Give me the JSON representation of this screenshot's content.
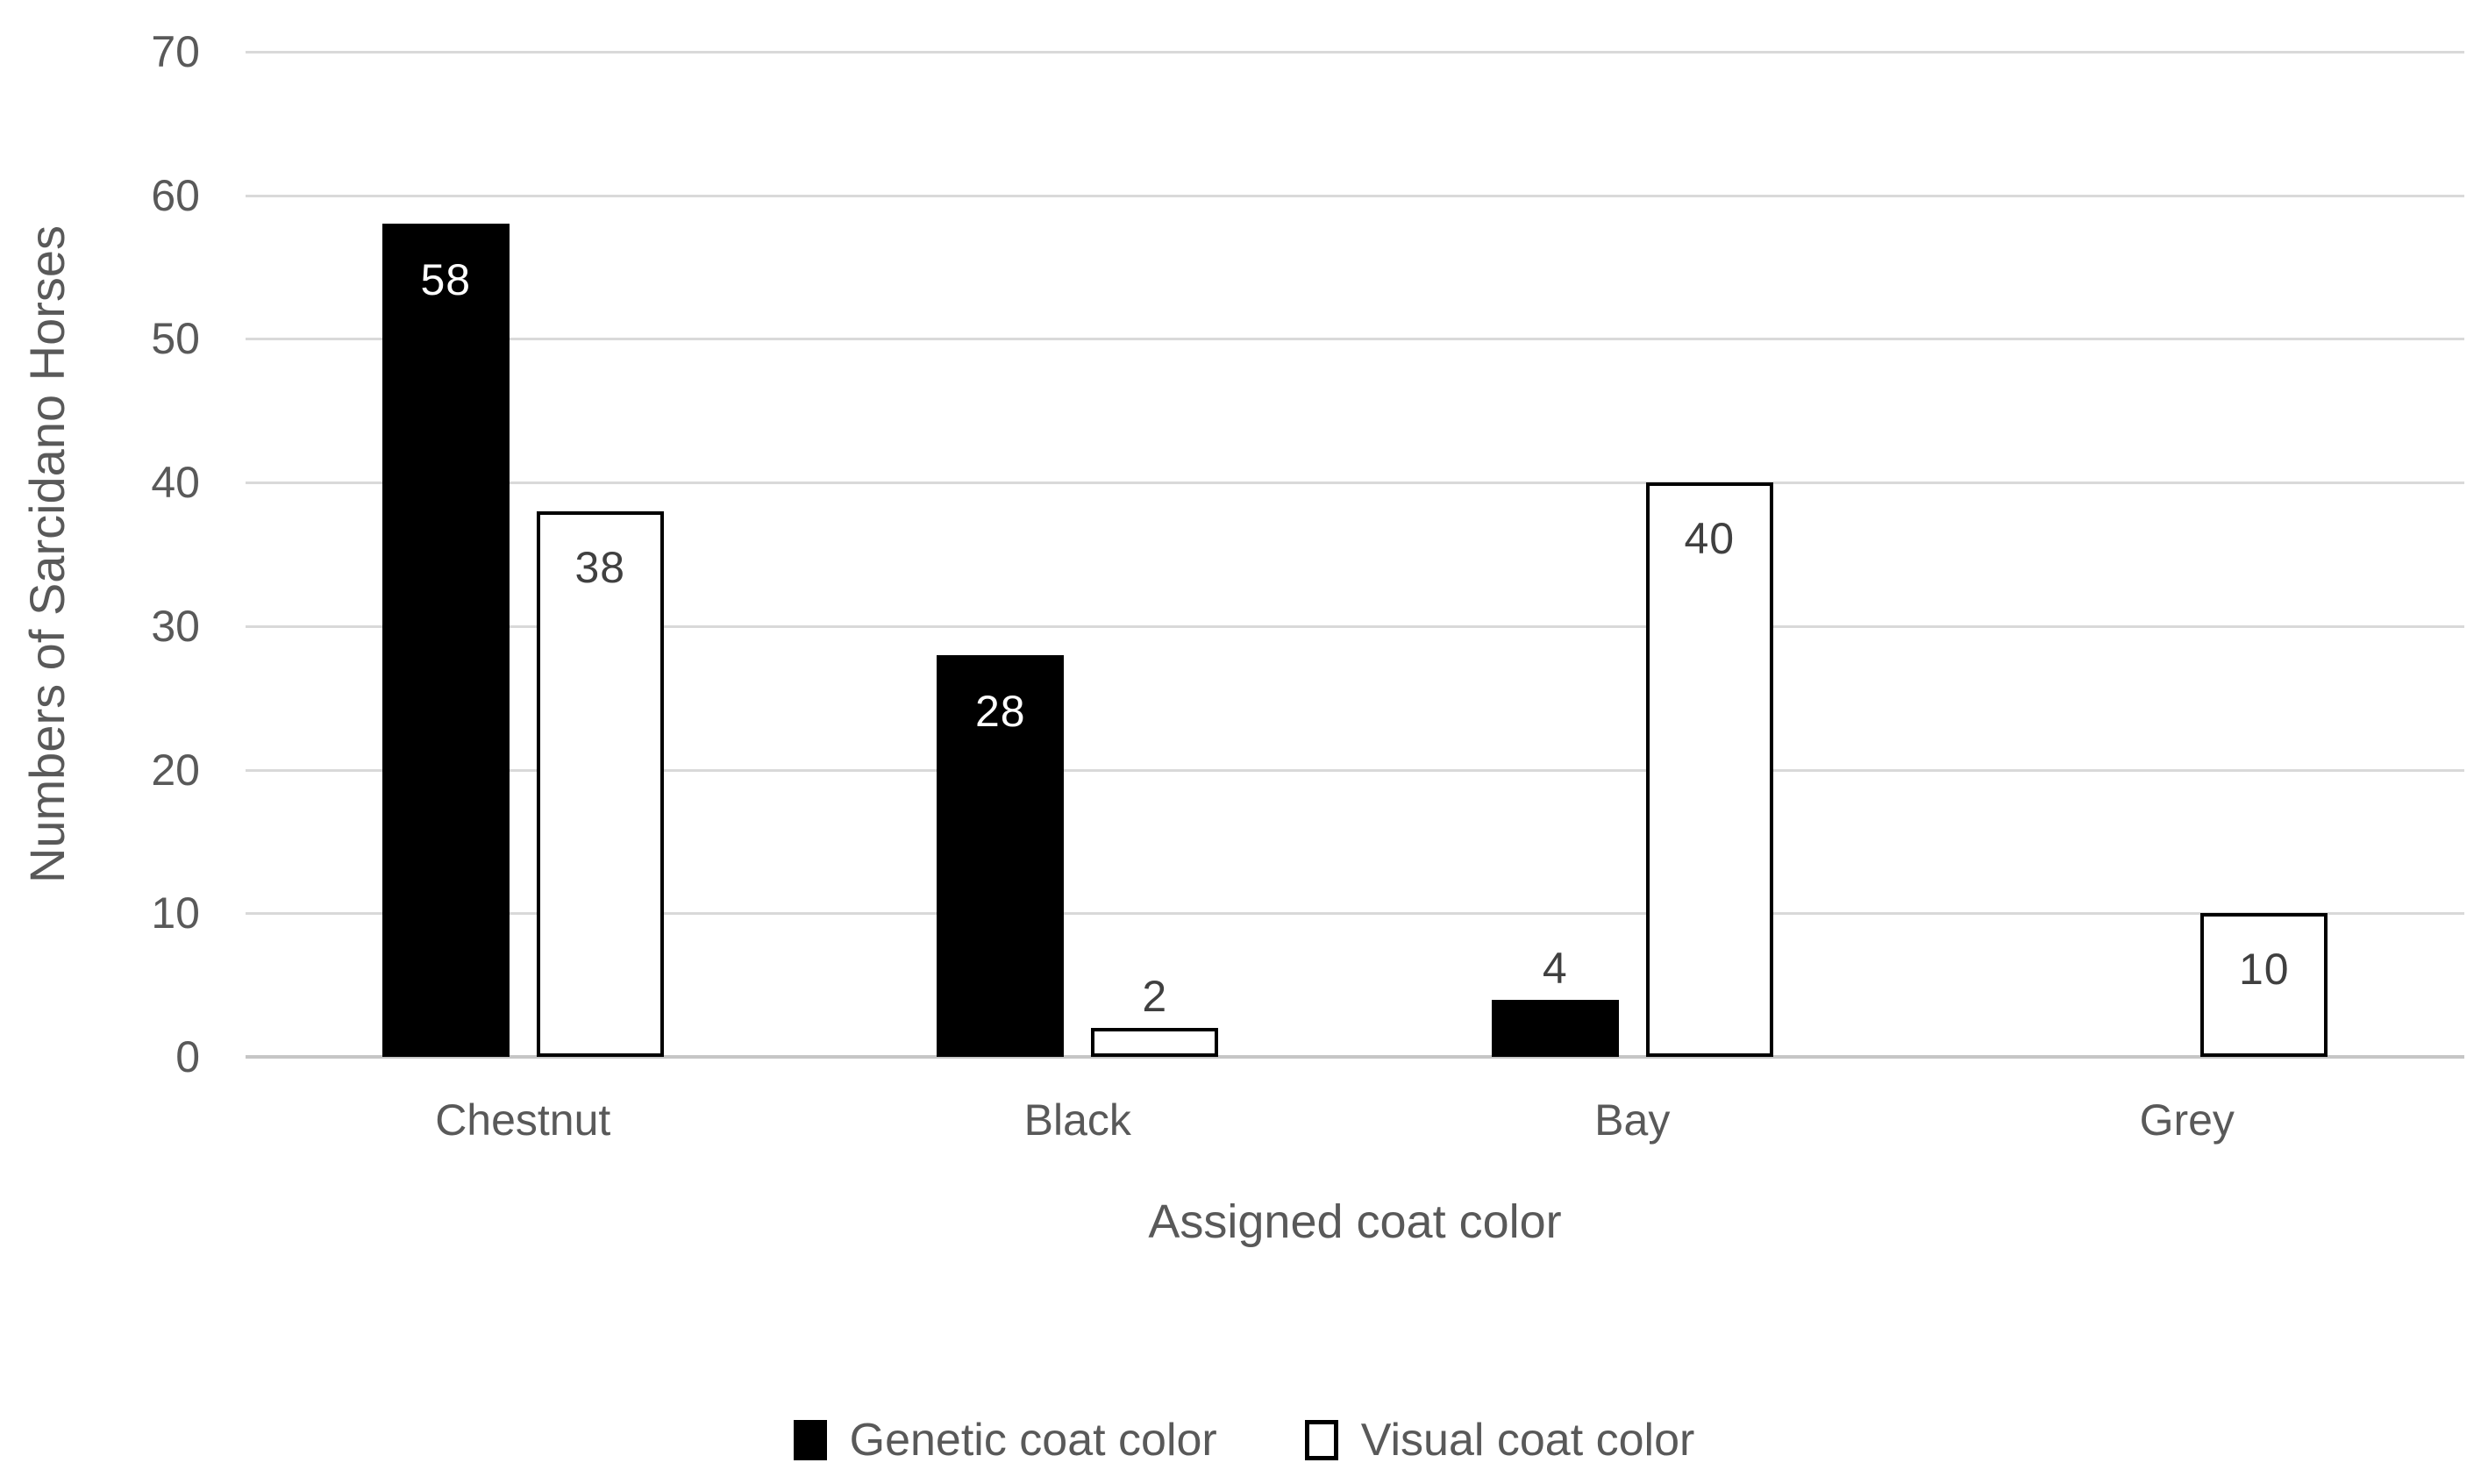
{
  "chart_data": {
    "type": "bar",
    "title": "",
    "categories": [
      "Chestnut",
      "Black",
      "Bay",
      "Grey"
    ],
    "series": [
      {
        "name": "Genetic coat color",
        "values": [
          58,
          28,
          4,
          0
        ],
        "fill": "#000000",
        "border": "#000000",
        "inside_label_color": "#ffffff"
      },
      {
        "name": "Visual coat color",
        "values": [
          38,
          2,
          40,
          10
        ],
        "fill": "#ffffff",
        "border": "#000000",
        "inside_label_color": "#404040"
      }
    ],
    "data_labels_shown": [
      "58",
      "38",
      "28",
      "2",
      "4",
      "40",
      "10"
    ],
    "xlabel": "Assigned coat color",
    "ylabel": "Numbers of Sarcidano Horses",
    "ylim": [
      0,
      70
    ],
    "ytick_step": 10,
    "yticks": [
      0,
      10,
      20,
      30,
      40,
      50,
      60,
      70
    ],
    "grid": true,
    "legend_position": "bottom",
    "colors": {
      "axis_text": "#595959",
      "data_label_outside": "#404040",
      "gridline": "#d9d9d9",
      "axis_line": "#c6c6c6",
      "background": "#ffffff"
    }
  }
}
